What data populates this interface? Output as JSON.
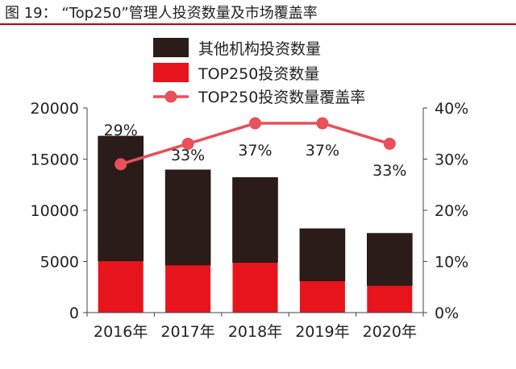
{
  "header": {
    "title": "图 19：  “Top250”管理人投资数量及市场覆盖率"
  },
  "chart_data": {
    "type": "bar",
    "categories": [
      "2016年",
      "2017年",
      "2018年",
      "2019年",
      "2020年"
    ],
    "series": [
      {
        "name": "其他机构投资数量",
        "kind": "bar-stack",
        "color": "#2b1c1a",
        "values": [
          12200,
          9300,
          8300,
          5100,
          5100
        ]
      },
      {
        "name": "TOP250投资数量",
        "kind": "bar-stack",
        "color": "#e8141c",
        "values": [
          5050,
          4650,
          4900,
          3100,
          2650
        ]
      },
      {
        "name": "TOP250投资数量覆盖率",
        "kind": "line",
        "axis": "right",
        "color": "#e8505a",
        "values": [
          29,
          33,
          37,
          37,
          33
        ],
        "labels": [
          "29%",
          "33%",
          "37%",
          "37%",
          "33%"
        ]
      }
    ],
    "yleft": {
      "ylim": [
        0,
        20000
      ],
      "ticks": [
        0,
        5000,
        10000,
        15000,
        20000
      ],
      "tick_labels": [
        "0",
        "5000",
        "10000",
        "15000",
        "20000"
      ]
    },
    "yright": {
      "ylim": [
        0,
        40
      ],
      "ticks": [
        0,
        10,
        20,
        30,
        40
      ],
      "tick_labels": [
        "0%",
        "10%",
        "20%",
        "30%",
        "40%"
      ]
    },
    "legend_position": "top",
    "grid": false
  }
}
